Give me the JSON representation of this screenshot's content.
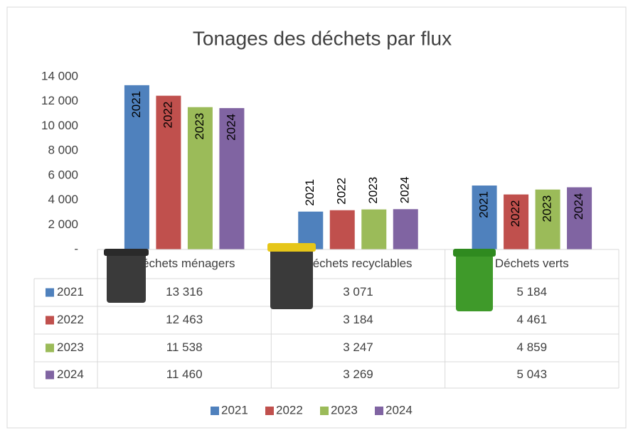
{
  "chart_data": {
    "type": "bar",
    "title": "Tonages des déchets par flux",
    "categories": [
      "Déchets ménagers",
      "Déchets recyclables",
      "Déchets verts"
    ],
    "series": [
      {
        "name": "2021",
        "color": "#4f81bd",
        "values": [
          13316,
          3071,
          5184
        ],
        "value_labels": [
          "13 316",
          "3 071",
          "5 184"
        ]
      },
      {
        "name": "2022",
        "color": "#c0504d",
        "values": [
          12463,
          3184,
          4461
        ],
        "value_labels": [
          "12 463",
          "3 184",
          "4 461"
        ]
      },
      {
        "name": "2023",
        "color": "#9bbb59",
        "values": [
          11538,
          3247,
          4859
        ],
        "value_labels": [
          "11 538",
          "3 247",
          "4 859"
        ]
      },
      {
        "name": "2024",
        "color": "#8064a2",
        "values": [
          11460,
          3269,
          5043
        ],
        "value_labels": [
          "11 460",
          "3 269",
          "5 043"
        ]
      }
    ],
    "ylim": [
      0,
      14000
    ],
    "yticks": [
      {
        "value": 0,
        "label": "-"
      },
      {
        "value": 2000,
        "label": "2 000"
      },
      {
        "value": 4000,
        "label": "4 000"
      },
      {
        "value": 6000,
        "label": "6 000"
      },
      {
        "value": 8000,
        "label": "8 000"
      },
      {
        "value": 10000,
        "label": "10 000"
      },
      {
        "value": 12000,
        "label": "12 000"
      },
      {
        "value": 14000,
        "label": "14 000"
      }
    ],
    "legend": "bottom"
  }
}
